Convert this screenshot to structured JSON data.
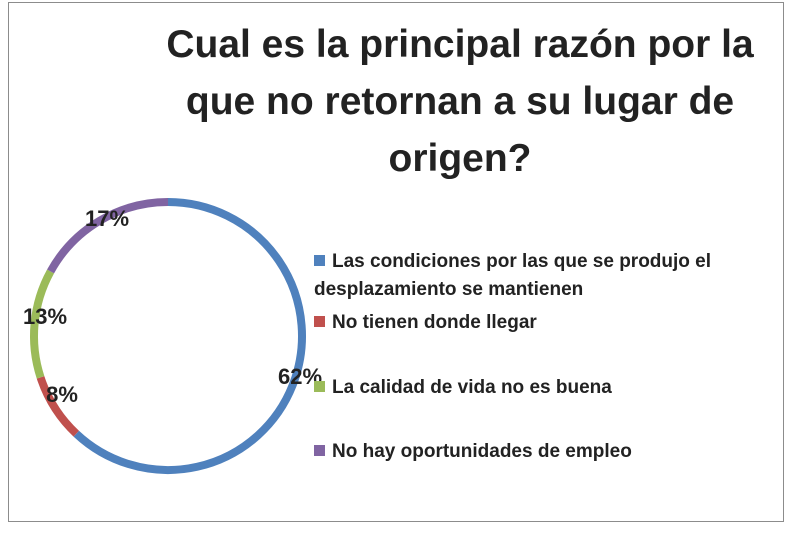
{
  "chart_data": {
    "type": "doughnut",
    "title": "Cual es la principal razón por la que no retornan a su lugar de origen?",
    "categories": [
      "Las condiciones por las que se produjo el desplazamiento se mantienen",
      "No tienen donde llegar",
      "La calidad de vida no es buena",
      "No hay oportunidades de empleo"
    ],
    "values": [
      62,
      8,
      13,
      17
    ],
    "value_labels": [
      "62%",
      "8%",
      "13%",
      "17%"
    ],
    "colors": [
      "#4f81bd",
      "#c0504d",
      "#9bbb59",
      "#8064a2"
    ],
    "legend": "right"
  }
}
